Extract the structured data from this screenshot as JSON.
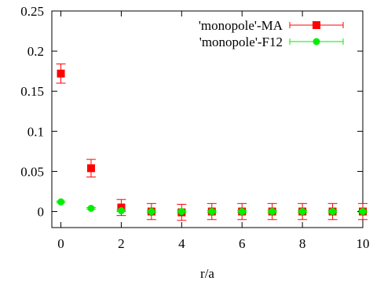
{
  "chart_data": {
    "type": "scatter",
    "xlabel": "r/a",
    "ylabel": "",
    "xlim": [
      -0.3,
      10
    ],
    "ylim": [
      -0.02,
      0.25
    ],
    "xticks": [
      0,
      2,
      4,
      6,
      8,
      10
    ],
    "yticks": [
      0,
      0.05,
      0.1,
      0.15,
      0.2,
      0.25
    ],
    "xtick_labels": [
      "0",
      "2",
      "4",
      "6",
      "8",
      "10"
    ],
    "ytick_labels": [
      "0",
      "0.05",
      "0.1",
      "0.15",
      "0.2",
      "0.25"
    ],
    "grid": false,
    "legend_position": "top-right",
    "series": [
      {
        "name": "'monopole'-MA",
        "color": "#ff0000",
        "marker": "square",
        "x": [
          0,
          1,
          2,
          3,
          4,
          5,
          6,
          7,
          8,
          9,
          10
        ],
        "y": [
          0.172,
          0.054,
          0.005,
          0.0,
          -0.001,
          0.0,
          0.0,
          0.0,
          0.0,
          0.0,
          0.0
        ],
        "err": [
          0.012,
          0.011,
          0.01,
          0.01,
          0.01,
          0.01,
          0.01,
          0.01,
          0.01,
          0.01,
          0.01
        ]
      },
      {
        "name": "'monopole'-F12",
        "color": "#00ee00",
        "marker": "circle",
        "x": [
          0,
          1,
          2,
          3,
          4,
          5,
          6,
          7,
          8,
          9,
          10
        ],
        "y": [
          0.012,
          0.004,
          0.001,
          0.0,
          0.0,
          0.0,
          0.0,
          0.0,
          0.0,
          0.0,
          0.0
        ],
        "err": [
          0.001,
          0.001,
          0.001,
          0.001,
          0.001,
          0.001,
          0.001,
          0.001,
          0.001,
          0.001,
          0.001
        ]
      }
    ]
  }
}
